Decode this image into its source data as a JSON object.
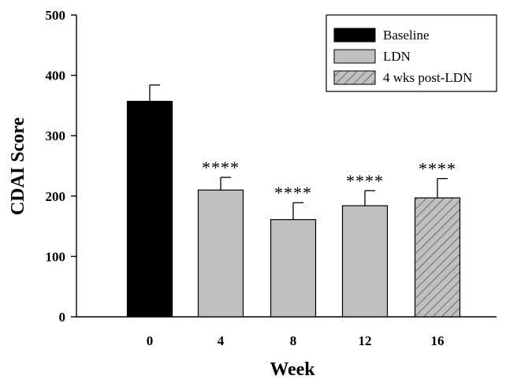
{
  "chart_data": {
    "type": "bar",
    "title": "",
    "xlabel": "Week",
    "ylabel": "CDAI Score",
    "categories": [
      "0",
      "4",
      "8",
      "12",
      "16"
    ],
    "values": [
      357,
      210,
      161,
      184,
      197
    ],
    "errors": [
      27,
      21,
      28,
      25,
      32
    ],
    "bar_groups": [
      "Baseline",
      "LDN",
      "LDN",
      "LDN",
      "4 wks post-LDN"
    ],
    "significance": [
      "",
      "****",
      "****",
      "****",
      "****"
    ],
    "ylim": [
      0,
      500
    ],
    "yticks": [
      0,
      100,
      200,
      300,
      400,
      500
    ],
    "grid": false,
    "legend_position": "top-right",
    "legend": [
      {
        "label": "Baseline",
        "fill": "#000000",
        "pattern": "solid"
      },
      {
        "label": "LDN",
        "fill": "#c0c0c0",
        "pattern": "solid"
      },
      {
        "label": "4 wks post-LDN",
        "fill": "#c0c0c0",
        "pattern": "hatch"
      }
    ]
  }
}
